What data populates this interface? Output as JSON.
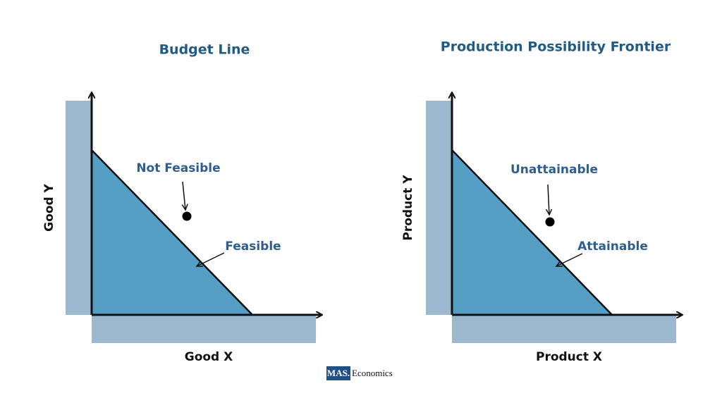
{
  "panels": [
    {
      "title": "Budget Line",
      "y_label": "Good Y",
      "x_label": "Good X",
      "point_label": "Not Feasible",
      "line_label": "Feasible"
    },
    {
      "title": "Production Possibility Frontier",
      "y_label": "Product Y",
      "x_label": "Product X",
      "point_label": "Unattainable",
      "line_label": "Attainable"
    }
  ],
  "logo": {
    "mark": "MAS.",
    "text": "Economics"
  }
}
